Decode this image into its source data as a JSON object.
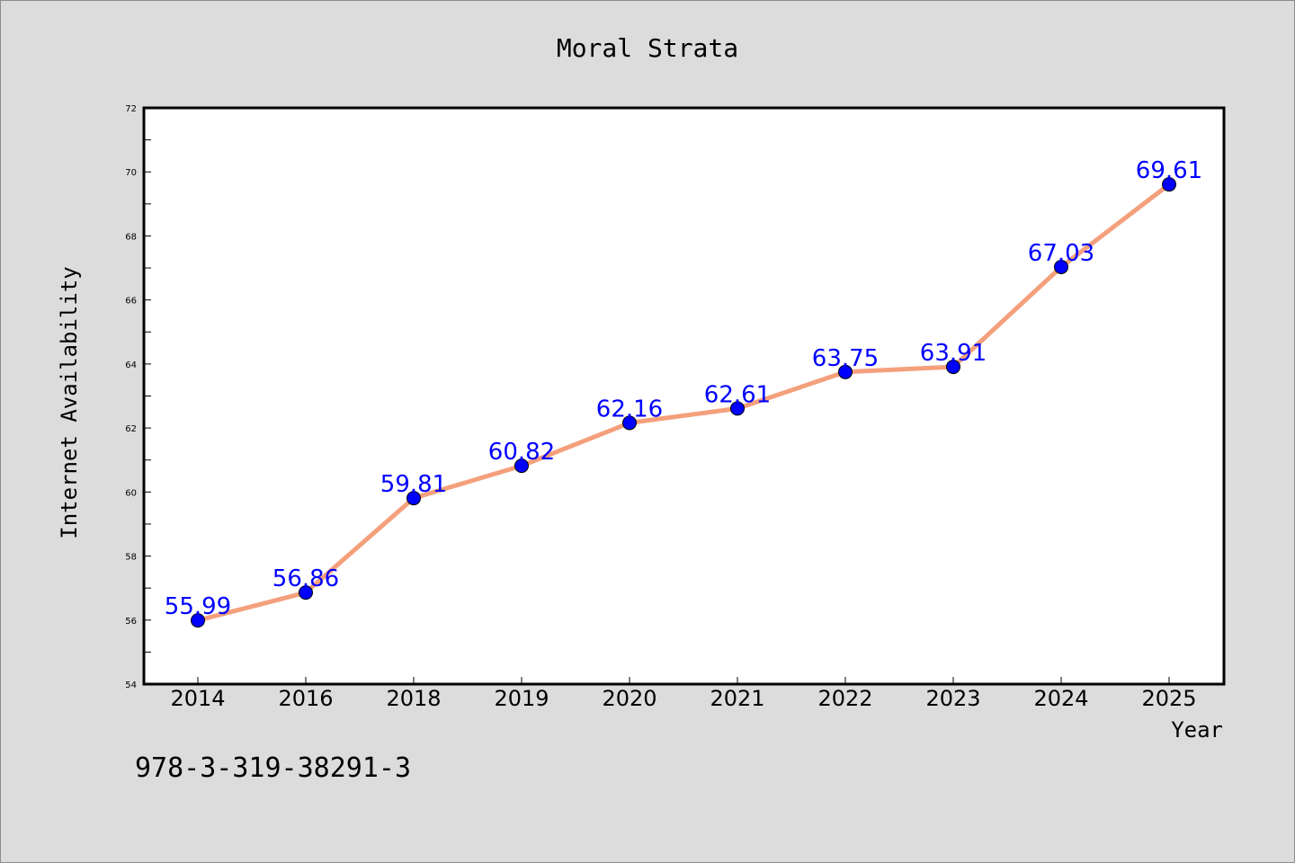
{
  "chart_data": {
    "type": "line",
    "title": "Moral Strata",
    "xlabel": "Year",
    "ylabel": "Internet Availability",
    "categories": [
      "2014",
      "2016",
      "2018",
      "2019",
      "2020",
      "2021",
      "2022",
      "2023",
      "2024",
      "2025"
    ],
    "values": [
      55.99,
      56.86,
      59.81,
      60.82,
      62.16,
      62.61,
      63.75,
      63.91,
      67.03,
      69.61
    ],
    "data_labels": [
      "55.99",
      "56.86",
      "59.81",
      "60.82",
      "62.16",
      "62.61",
      "63.75",
      "63.91",
      "67.03",
      "69.61"
    ],
    "ylim": [
      54,
      72
    ],
    "yticks": [
      54,
      56,
      58,
      60,
      62,
      64,
      66,
      68,
      70,
      72
    ],
    "grid": false,
    "line_color": "#f4a07c",
    "marker_color": "#0000ff",
    "label_color": "#0000ff",
    "background_color": "#dcdcdc",
    "plot_background": "#ffffff"
  },
  "footer": {
    "isbn": "978-3-319-38291-3"
  }
}
